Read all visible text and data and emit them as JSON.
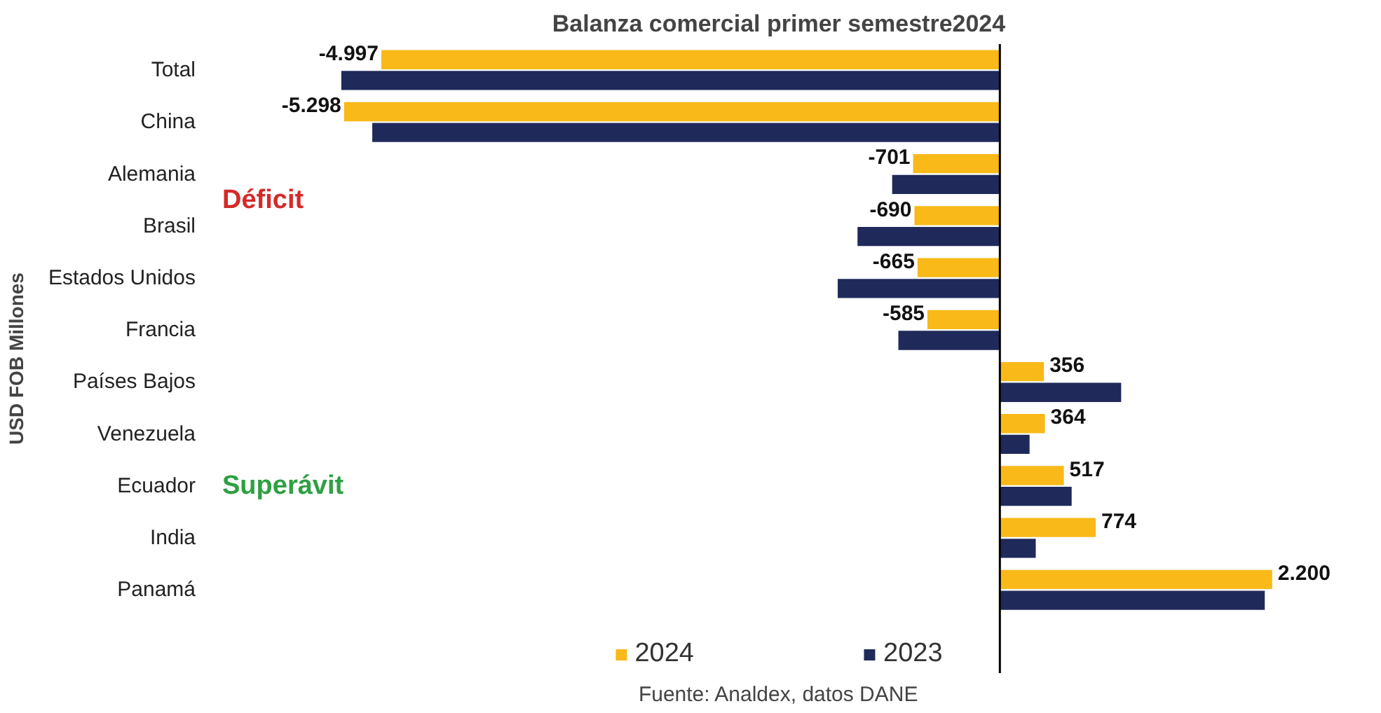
{
  "chart_data": {
    "type": "bar",
    "orientation": "horizontal",
    "title": "Balanza comercial primer semestre2024",
    "ylabel": "USD FOB Millones",
    "categories": [
      "Total",
      "China",
      "Alemania",
      "Brasil",
      "Estados Unidos",
      "Francia",
      "Países Bajos",
      "Venezuela",
      "Ecuador",
      "India",
      "Panamá"
    ],
    "series": [
      {
        "name": "2024",
        "color": "#f9b918",
        "values": [
          -4997,
          -5298,
          -701,
          -690,
          -665,
          -585,
          356,
          364,
          517,
          774,
          2200
        ],
        "value_labels": [
          "-4.997",
          "-5.298",
          "-701",
          "-690",
          "-665",
          "-585",
          "356",
          "364",
          "517",
          "774",
          "2.200"
        ]
      },
      {
        "name": "2023",
        "color": "#1f2a5a",
        "values": [
          -5320,
          -5070,
          -870,
          -1150,
          -1310,
          -820,
          980,
          240,
          580,
          290,
          2140
        ]
      }
    ],
    "ref_lines": [
      {
        "axis": "x",
        "value": 0,
        "color": "#000000"
      }
    ],
    "legend": "bottom",
    "grid": false,
    "annotations": [
      "Déficit",
      "Superávit",
      "Fuente: Analdex, datos DANE"
    ]
  }
}
